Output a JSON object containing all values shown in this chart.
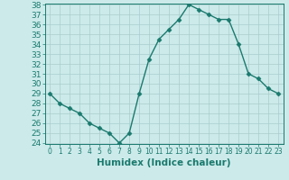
{
  "x": [
    0,
    1,
    2,
    3,
    4,
    5,
    6,
    7,
    8,
    9,
    10,
    11,
    12,
    13,
    14,
    15,
    16,
    17,
    18,
    19,
    20,
    21,
    22,
    23
  ],
  "y": [
    29,
    28,
    27.5,
    27,
    26,
    25.5,
    25,
    24,
    25,
    29,
    32.5,
    34.5,
    35.5,
    36.5,
    38,
    37.5,
    37,
    36.5,
    36.5,
    34,
    31,
    30.5,
    29.5,
    29
  ],
  "line_color": "#1a7a6e",
  "marker": "D",
  "marker_size": 2.5,
  "bg_color": "#cceaea",
  "grid_color": "#aacccc",
  "xlabel": "Humidex (Indice chaleur)",
  "ylim": [
    24,
    38
  ],
  "xlim": [
    -0.5,
    23.5
  ],
  "yticks": [
    24,
    25,
    26,
    27,
    28,
    29,
    30,
    31,
    32,
    33,
    34,
    35,
    36,
    37,
    38
  ],
  "xticks": [
    0,
    1,
    2,
    3,
    4,
    5,
    6,
    7,
    8,
    9,
    10,
    11,
    12,
    13,
    14,
    15,
    16,
    17,
    18,
    19,
    20,
    21,
    22,
    23
  ],
  "tick_color": "#1a7a6e",
  "label_color": "#1a7a6e",
  "ytick_fontsize": 6.5,
  "xtick_fontsize": 5.5,
  "xlabel_fontsize": 7.5,
  "linewidth": 1.0
}
